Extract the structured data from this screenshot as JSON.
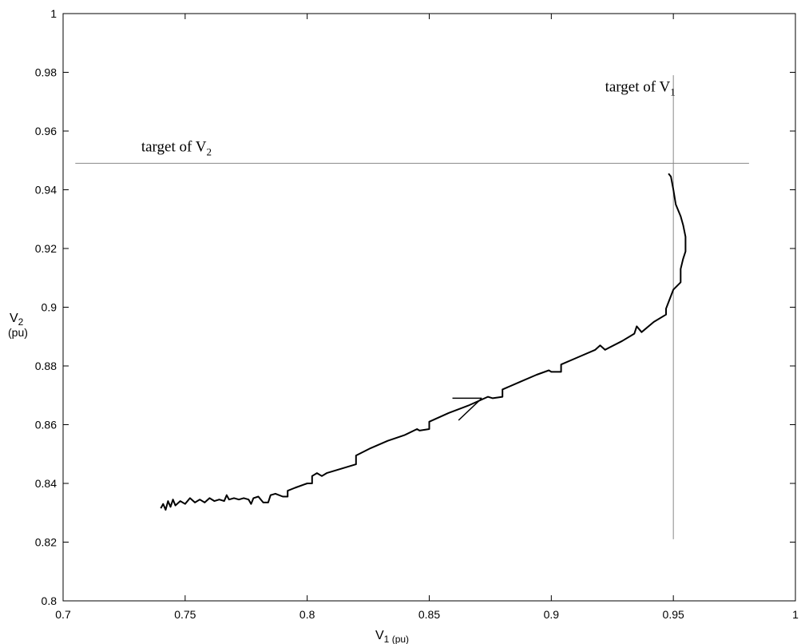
{
  "chart_data": {
    "type": "line",
    "xlabel": {
      "main": "V",
      "sub": "1",
      "unit": " (pu)"
    },
    "ylabel": {
      "main": "V",
      "sub": "2",
      "unit": "(pu)"
    },
    "xlim": [
      0.7,
      1.0
    ],
    "ylim": [
      0.8,
      1.0
    ],
    "x_ticks": [
      0.7,
      0.75,
      0.8,
      0.85,
      0.9,
      0.95,
      1.0
    ],
    "x_tick_labels": [
      "0.7",
      "0.75",
      "0.8",
      "0.85",
      "0.9",
      "0.95",
      "1"
    ],
    "y_ticks": [
      0.8,
      0.82,
      0.84,
      0.86,
      0.88,
      0.9,
      0.92,
      0.94,
      0.96,
      0.98,
      1.0
    ],
    "y_tick_labels": [
      "0.8",
      "0.82",
      "0.84",
      "0.86",
      "0.88",
      "0.9",
      "0.92",
      "0.94",
      "0.96",
      "0.98",
      "1"
    ],
    "grid": false,
    "series": [
      {
        "x": [
          0.74,
          0.741,
          0.742,
          0.743,
          0.744,
          0.745,
          0.746,
          0.748,
          0.75,
          0.752,
          0.754,
          0.756,
          0.758,
          0.76,
          0.762,
          0.764,
          0.766,
          0.767,
          0.768,
          0.77,
          0.772,
          0.774,
          0.776,
          0.777,
          0.778,
          0.78,
          0.782,
          0.784,
          0.785,
          0.787,
          0.79,
          0.792,
          0.792,
          0.795,
          0.8,
          0.802,
          0.802,
          0.804,
          0.806,
          0.808,
          0.814,
          0.82,
          0.82,
          0.826,
          0.833,
          0.84,
          0.845,
          0.846,
          0.85,
          0.85,
          0.858,
          0.866,
          0.874,
          0.876,
          0.876,
          0.88,
          0.88,
          0.887,
          0.894,
          0.899,
          0.9,
          0.904,
          0.904,
          0.911,
          0.918,
          0.92,
          0.922,
          0.922,
          0.929,
          0.934,
          0.935,
          0.937,
          0.937,
          0.942,
          0.947,
          0.947,
          0.95,
          0.953,
          0.953,
          0.954,
          0.955,
          0.955,
          0.954,
          0.953,
          0.951,
          0.95,
          0.949,
          0.948
        ],
        "y": [
          0.8315,
          0.833,
          0.831,
          0.834,
          0.832,
          0.8345,
          0.8325,
          0.834,
          0.833,
          0.835,
          0.8335,
          0.8345,
          0.8335,
          0.835,
          0.834,
          0.8345,
          0.834,
          0.836,
          0.8345,
          0.835,
          0.8345,
          0.835,
          0.8345,
          0.833,
          0.835,
          0.8355,
          0.8335,
          0.8335,
          0.836,
          0.8365,
          0.8355,
          0.8355,
          0.8375,
          0.8385,
          0.84,
          0.84,
          0.8425,
          0.8435,
          0.8425,
          0.8435,
          0.845,
          0.8465,
          0.8495,
          0.852,
          0.8545,
          0.8565,
          0.8585,
          0.858,
          0.8585,
          0.861,
          0.864,
          0.8665,
          0.8695,
          0.869,
          0.869,
          0.8695,
          0.872,
          0.8745,
          0.877,
          0.8785,
          0.878,
          0.878,
          0.8805,
          0.883,
          0.8855,
          0.887,
          0.8855,
          0.8855,
          0.8885,
          0.891,
          0.8935,
          0.8915,
          0.8915,
          0.895,
          0.8975,
          0.8995,
          0.906,
          0.9085,
          0.913,
          0.9165,
          0.919,
          0.924,
          0.928,
          0.931,
          0.935,
          0.94,
          0.9445,
          0.9455
        ]
      }
    ],
    "target_lines": [
      {
        "orientation": "horizontal",
        "value": 0.949,
        "from": 0.705,
        "to": 0.981
      },
      {
        "orientation": "vertical",
        "value": 0.95,
        "from": 0.821,
        "to": 0.979
      }
    ],
    "annotations": [
      {
        "text": "target of V",
        "sub": "2",
        "x": 0.732,
        "y": 0.953
      },
      {
        "text": "target of V",
        "sub": "1",
        "x": 0.922,
        "y": 0.9735
      }
    ],
    "direction_arrow": {
      "tip": {
        "x": 0.8715,
        "y": 0.869
      },
      "tail": {
        "x": 0.862,
        "y": 0.8615
      },
      "barb": {
        "x": 0.8595,
        "y": 0.869
      }
    }
  }
}
